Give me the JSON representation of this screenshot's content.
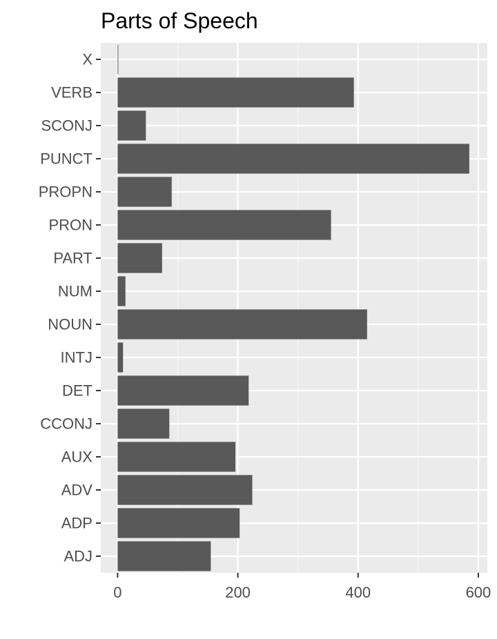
{
  "chart_data": {
    "type": "bar",
    "orientation": "horizontal",
    "title": "Parts of Speech",
    "xlabel": "",
    "ylabel": "",
    "categories": [
      "ADJ",
      "ADP",
      "ADV",
      "AUX",
      "CCONJ",
      "DET",
      "INTJ",
      "NOUN",
      "NUM",
      "PART",
      "PRON",
      "PROPN",
      "PUNCT",
      "SCONJ",
      "VERB",
      "X"
    ],
    "values": [
      155,
      203,
      224,
      196,
      86,
      218,
      9,
      415,
      13,
      74,
      355,
      90,
      585,
      47,
      393,
      1
    ],
    "xlim": [
      -28,
      615
    ],
    "xticks": [
      0,
      200,
      400,
      600
    ],
    "grid": true,
    "legend": "none",
    "colors": {
      "bar": "#595959",
      "panel": "#ebebeb",
      "grid_major": "#ffffff",
      "grid_minor": "#f5f5f5",
      "text": "#4d4d4d",
      "title": "#000000"
    }
  }
}
